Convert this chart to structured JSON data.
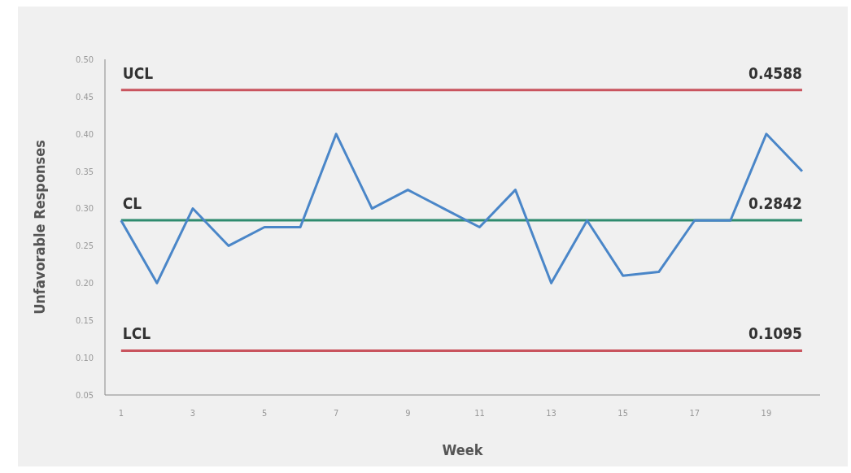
{
  "chart_data": {
    "type": "line",
    "xlabel": "Week",
    "ylabel": "Unfavorable Responses",
    "x": [
      1,
      2,
      3,
      4,
      5,
      6,
      7,
      8,
      9,
      10,
      11,
      12,
      13,
      14,
      15,
      16,
      17,
      18,
      19,
      20
    ],
    "series": [
      {
        "color": "#4a86c8",
        "values": [
          0.284,
          0.2,
          0.3,
          0.25,
          0.275,
          0.275,
          0.4,
          0.3,
          0.325,
          0.3,
          0.275,
          0.325,
          0.2,
          0.284,
          0.21,
          0.215,
          0.284,
          0.284,
          0.4,
          0.35
        ]
      }
    ],
    "xlim": [
      0.55,
      20.5
    ],
    "xticks": [
      1,
      3,
      5,
      7,
      9,
      11,
      13,
      15,
      17,
      19
    ],
    "ylim": [
      0.05,
      0.5
    ],
    "yticks": [
      {
        "value": 0.05,
        "label": "0.05"
      },
      {
        "value": 0.1,
        "label": "0.10"
      },
      {
        "value": 0.15,
        "label": "0.15"
      },
      {
        "value": 0.2,
        "label": "0.20"
      },
      {
        "value": 0.25,
        "label": "0.25"
      },
      {
        "value": 0.3,
        "label": "0.30"
      },
      {
        "value": 0.35,
        "label": "0.35"
      },
      {
        "value": 0.4,
        "label": "0.40"
      },
      {
        "value": 0.45,
        "label": "0.45"
      },
      {
        "value": 0.5,
        "label": "0.50"
      }
    ],
    "ref_lines": [
      {
        "axis": "y",
        "value": 0.4588,
        "label": "UCL",
        "color": "#c9545e"
      },
      {
        "axis": "y",
        "value": 0.2842,
        "label": "CL",
        "color": "#2e8b6e"
      },
      {
        "axis": "y",
        "value": 0.1095,
        "label": "LCL",
        "color": "#c9545e"
      }
    ],
    "annotations": [
      {
        "text": "0.4588",
        "y": 0.4588
      },
      {
        "text": "0.2842",
        "y": 0.2842
      },
      {
        "text": "0.1095",
        "y": 0.1095
      }
    ],
    "grid": false,
    "marker": "none",
    "line_style": "solid"
  }
}
